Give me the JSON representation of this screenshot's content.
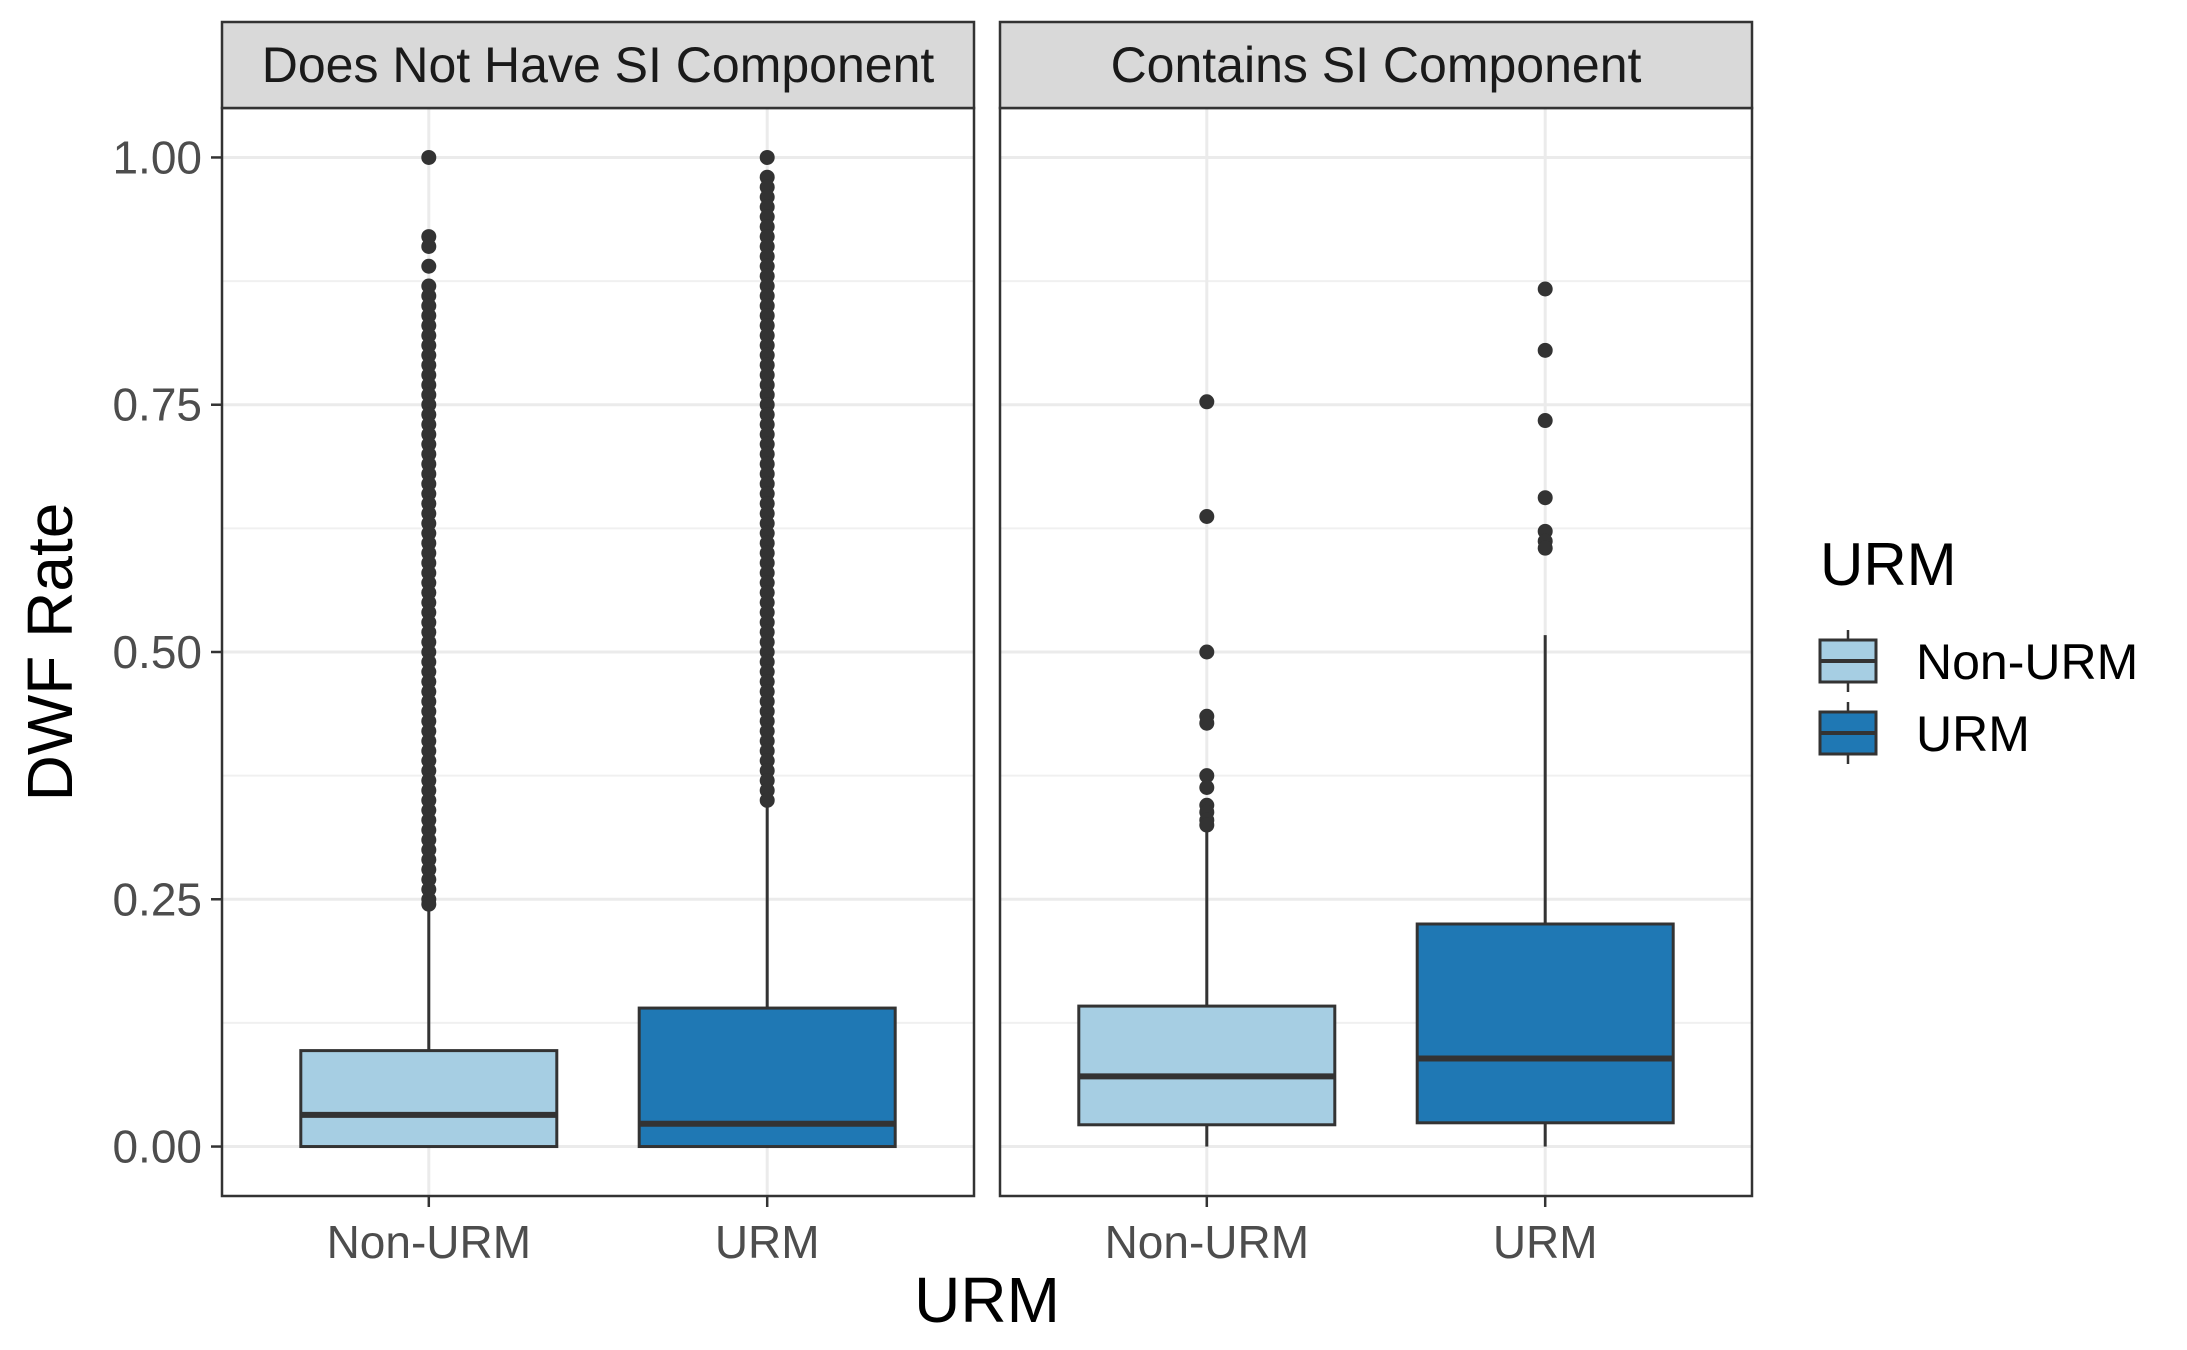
{
  "chart_data": {
    "type": "boxplot",
    "xlabel": "URM",
    "ylabel": "DWF Rate",
    "ylim": [
      -0.05,
      1.05
    ],
    "yticks": [
      0.0,
      0.25,
      0.5,
      0.75,
      1.0
    ],
    "ytick_labels": [
      "0.00",
      "0.25",
      "0.50",
      "0.75",
      "1.00"
    ],
    "categories": [
      "Non-URM",
      "URM"
    ],
    "grid": true,
    "legend": {
      "title": "URM",
      "position": "right",
      "entries": [
        {
          "label": "Non-URM",
          "color": "#a6cee3"
        },
        {
          "label": "URM",
          "color": "#1f78b4"
        }
      ]
    },
    "panels": [
      {
        "title": "Does Not Have SI Component",
        "boxes": [
          {
            "category": "Non-URM",
            "color": "#a6cee3",
            "q1": 0.0,
            "median": 0.032,
            "q3": 0.097,
            "whisker_low": 0.0,
            "whisker_high": 0.24,
            "outliers": [
              1.0,
              0.92,
              0.91,
              0.89,
              0.87,
              0.86,
              0.85,
              0.84,
              0.83,
              0.82,
              0.81,
              0.8,
              0.79,
              0.78,
              0.77,
              0.76,
              0.75,
              0.74,
              0.73,
              0.72,
              0.71,
              0.7,
              0.69,
              0.68,
              0.67,
              0.66,
              0.65,
              0.64,
              0.63,
              0.62,
              0.61,
              0.6,
              0.59,
              0.58,
              0.57,
              0.56,
              0.55,
              0.54,
              0.53,
              0.52,
              0.51,
              0.5,
              0.49,
              0.48,
              0.47,
              0.46,
              0.45,
              0.44,
              0.43,
              0.42,
              0.41,
              0.4,
              0.39,
              0.38,
              0.37,
              0.36,
              0.35,
              0.34,
              0.33,
              0.32,
              0.31,
              0.3,
              0.29,
              0.28,
              0.27,
              0.26,
              0.25,
              0.245
            ]
          },
          {
            "category": "URM",
            "color": "#1f78b4",
            "q1": 0.0,
            "median": 0.023,
            "q3": 0.14,
            "whisker_low": 0.0,
            "whisker_high": 0.345,
            "outliers": [
              1.0,
              0.98,
              0.97,
              0.96,
              0.95,
              0.94,
              0.93,
              0.92,
              0.91,
              0.9,
              0.89,
              0.88,
              0.87,
              0.86,
              0.85,
              0.84,
              0.83,
              0.82,
              0.81,
              0.8,
              0.79,
              0.78,
              0.77,
              0.76,
              0.75,
              0.74,
              0.73,
              0.72,
              0.71,
              0.7,
              0.69,
              0.68,
              0.67,
              0.66,
              0.65,
              0.64,
              0.63,
              0.62,
              0.61,
              0.6,
              0.59,
              0.58,
              0.57,
              0.56,
              0.55,
              0.54,
              0.53,
              0.52,
              0.51,
              0.5,
              0.49,
              0.48,
              0.47,
              0.46,
              0.45,
              0.44,
              0.43,
              0.42,
              0.41,
              0.4,
              0.39,
              0.38,
              0.37,
              0.36,
              0.35
            ]
          }
        ]
      },
      {
        "title": "Contains SI Component",
        "boxes": [
          {
            "category": "Non-URM",
            "color": "#a6cee3",
            "q1": 0.022,
            "median": 0.071,
            "q3": 0.142,
            "whisker_low": 0.0,
            "whisker_high": 0.32,
            "outliers": [
              0.753,
              0.637,
              0.5,
              0.435,
              0.428,
              0.375,
              0.363,
              0.345,
              0.338,
              0.33,
              0.325
            ]
          },
          {
            "category": "URM",
            "color": "#1f78b4",
            "q1": 0.024,
            "median": 0.089,
            "q3": 0.225,
            "whisker_low": 0.0,
            "whisker_high": 0.517,
            "outliers": [
              0.867,
              0.805,
              0.734,
              0.656,
              0.622,
              0.612,
              0.605
            ]
          }
        ]
      }
    ]
  }
}
